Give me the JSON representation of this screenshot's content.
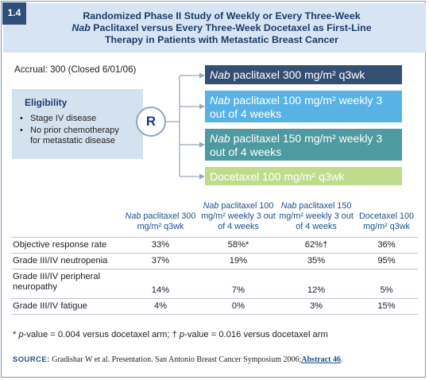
{
  "badge": "1.4",
  "title": {
    "line1": "Randomized Phase II Study of Weekly or Every Three-Week",
    "line2_italic": "Nab",
    "line2_rest": " Paclitaxel versus Every Three-Week Docetaxel as First-Line",
    "line3": "Therapy in Patients with Metastatic Breast Cancer"
  },
  "design": {
    "accrual": "Accrual: 300 (Closed 6/01/06)",
    "eligibility_title": "Eligibility",
    "eligibility_items": [
      "Stage IV disease",
      "No prior chemotherapy for metastatic disease"
    ],
    "randomization_label": "R",
    "arms": [
      {
        "italic": "Nab",
        "text": " paclitaxel 300 mg/m² q3wk",
        "color": "#344f73"
      },
      {
        "italic": "Nab",
        "text": " paclitaxel 100 mg/m² weekly 3 out of 4 weeks",
        "color": "#58b3e4"
      },
      {
        "italic": "Nab",
        "text": " paclitaxel 150 mg/m² weekly 3 out of 4 weeks",
        "color": "#4d9aa0"
      },
      {
        "italic": "",
        "text": "Docetaxel 100 mg/m² q3wk",
        "color": "#bfdc8d"
      }
    ]
  },
  "table": {
    "headers": [
      {
        "italic": "Nab",
        "text": " paclitaxel 300 mg/m² q3wk"
      },
      {
        "italic": "Nab",
        "text": " paclitaxel 100 mg/m² weekly 3 out of 4 weeks"
      },
      {
        "italic": "Nab",
        "text": " paclitaxel 150 mg/m² weekly 3 out of 4 weeks"
      },
      {
        "italic": "",
        "text": "Docetaxel 100 mg/m² q3wk"
      }
    ],
    "rows": [
      {
        "label": "Objective response rate",
        "values": [
          "33%",
          "58%*",
          "62%†",
          "36%"
        ]
      },
      {
        "label": "Grade III/IV neutropenia",
        "values": [
          "37%",
          "19%",
          "35%",
          "95%"
        ]
      },
      {
        "label": "Grade III/IV peripheral neuropathy",
        "values": [
          "14%",
          "7%",
          "12%",
          "5%"
        ]
      },
      {
        "label": "Grade III/IV fatigue",
        "values": [
          "4%",
          "0%",
          "3%",
          "15%"
        ]
      }
    ]
  },
  "footnote": {
    "star": "* ",
    "p1": "p",
    "t1": "-value = 0.004 versus docetaxel arm; ",
    "dagger": "† ",
    "p2": "p",
    "t2": "-value = 0.016 versus docetaxel arm"
  },
  "source": {
    "label": "SOURCE:",
    "text": " Gradishar W et al. Presentation. San Antonio Breast Cancer Symposium 2006;",
    "link": "Abstract 46",
    "end": "."
  },
  "colors": {
    "accent": "#1d3c6a",
    "title_bg": "#d7e4f3",
    "badge": "#2f4f79"
  }
}
